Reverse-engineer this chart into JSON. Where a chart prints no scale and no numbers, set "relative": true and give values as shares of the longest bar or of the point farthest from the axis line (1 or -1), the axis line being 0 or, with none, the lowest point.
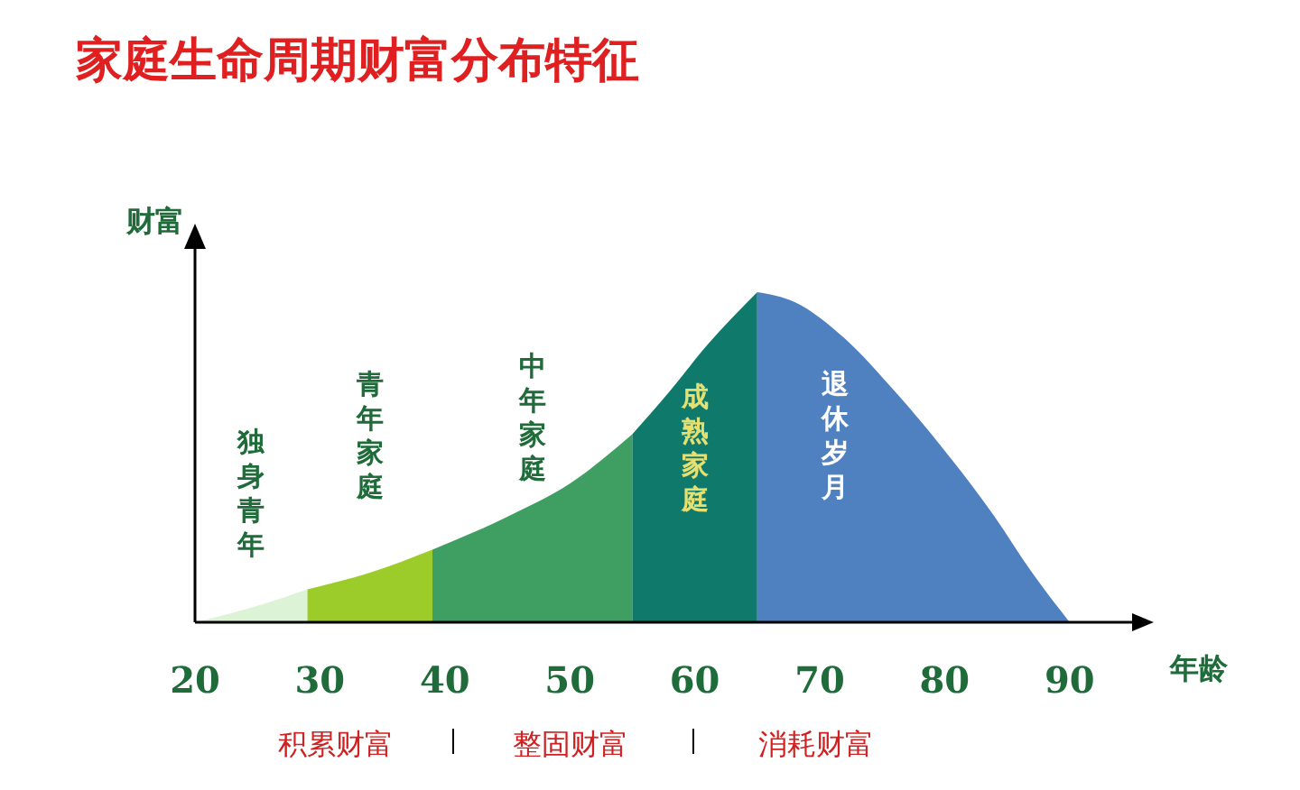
{
  "chart_data": {
    "type": "area",
    "title": "家庭生命周期财富分布特征",
    "xlabel": "年龄",
    "ylabel": "财富",
    "relative": true,
    "xlim": [
      20,
      95
    ],
    "xticks": [
      20,
      30,
      40,
      50,
      60,
      70,
      80,
      90
    ],
    "grid": false,
    "annotations": [
      "积累财富",
      "整固财富",
      "消耗财富"
    ],
    "series": [
      {
        "name": "独身青年",
        "color": "#dcf3d6",
        "x": [
          20,
          25,
          29
        ],
        "values": [
          0,
          0.05,
          0.1
        ]
      },
      {
        "name": "青年家庭",
        "color": "#9ccc2a",
        "x": [
          29,
          34,
          39
        ],
        "values": [
          0.1,
          0.15,
          0.22
        ]
      },
      {
        "name": "中年家庭",
        "color": "#3f9e62",
        "x": [
          39,
          45,
          50,
          55
        ],
        "values": [
          0.22,
          0.32,
          0.42,
          0.57
        ]
      },
      {
        "name": "成熟家庭",
        "color": "#0f7a6c",
        "x": [
          55,
          58,
          61,
          65
        ],
        "values": [
          0.57,
          0.7,
          0.84,
          1
        ]
      },
      {
        "name": "退休岁月",
        "color": "#4f81c0",
        "x": [
          65,
          68,
          72,
          76,
          80,
          84,
          87,
          90
        ],
        "values": [
          1,
          0.97,
          0.86,
          0.7,
          0.52,
          0.32,
          0.15,
          0
        ]
      }
    ]
  }
}
